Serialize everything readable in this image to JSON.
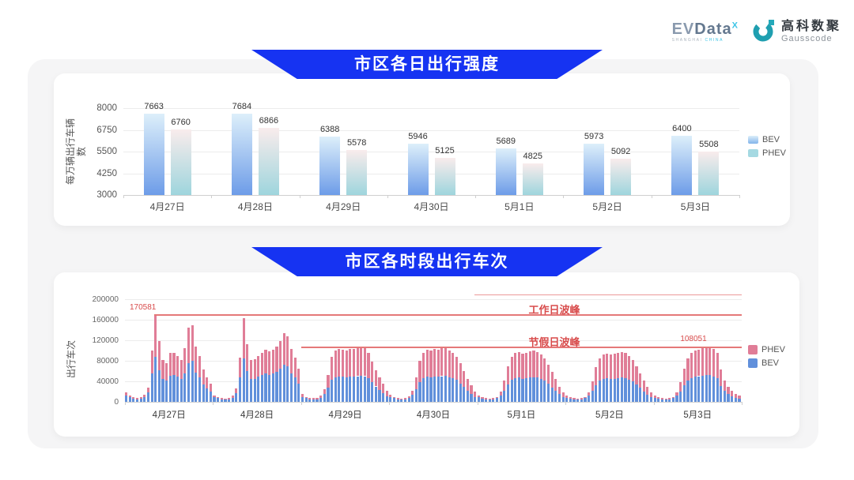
{
  "header": {
    "evdata": {
      "brand_ev": "EV",
      "brand_data": "Data",
      "sup": "X",
      "sub_left": "SHANGHAI",
      "sub_right": "CHINA"
    },
    "gausscode": {
      "cn": "高科数聚",
      "en": "Gausscode"
    }
  },
  "colors": {
    "banner_blue": "#1633f2",
    "bev_bar_top": "#ddeffa",
    "bev_bar_bottom": "#6d9ce8",
    "phev_bar_top": "#f9ecec",
    "phev_bar_bottom": "#9ed5dd",
    "bev_solid": "#6190db",
    "phev_solid": "#e07d97",
    "legend_bev_swatch": "#82b4ea",
    "legend_phev_swatch": "#a5d9e2",
    "annotation_red": "#d84b4b",
    "line_red": "#e57878",
    "panel_bg": "#f5f5f6",
    "grid_line": "#ececec",
    "axis_line": "#cfcfcf"
  },
  "chart_data": [
    {
      "type": "bar",
      "title": "市区各日出行强度",
      "ylabel": "每万辆出行车辆数",
      "categories": [
        "4月27日",
        "4月28日",
        "4月29日",
        "4月30日",
        "5月1日",
        "5月2日",
        "5月3日"
      ],
      "series": [
        {
          "name": "BEV",
          "values": [
            7663,
            7684,
            6388,
            5946,
            5689,
            5973,
            6400
          ]
        },
        {
          "name": "PHEV",
          "values": [
            6760,
            6866,
            5578,
            5125,
            4825,
            5092,
            5508
          ]
        }
      ],
      "ylim": [
        3000,
        8000
      ],
      "yticks": [
        3000,
        4250,
        5500,
        6750,
        8000
      ],
      "legend": [
        "BEV",
        "PHEV"
      ],
      "legend_position": "right",
      "grid": true
    },
    {
      "type": "bar",
      "stacked": true,
      "title": "市区各时段出行车次",
      "ylabel": "出行车次",
      "hours_per_day": 24,
      "ylim": [
        0,
        200000
      ],
      "yticks": [
        0,
        40000,
        80000,
        120000,
        160000,
        200000
      ],
      "legend": [
        "PHEV",
        "BEV"
      ],
      "legend_position": "right",
      "grid": true,
      "annotations": {
        "workday_peak": {
          "label": "工作日波峰",
          "value": 170581,
          "value_label": "170581"
        },
        "holiday_peak": {
          "label": "节假日波峰",
          "value": 108051,
          "value_label": "108051"
        }
      },
      "days": [
        {
          "date": "4月27日",
          "bev": [
            12000,
            9000,
            6000,
            5000,
            6000,
            9000,
            18000,
            55000,
            88000,
            62000,
            44000,
            41000,
            51000,
            52000,
            49000,
            44000,
            55000,
            76000,
            80000,
            57000,
            47000,
            34000,
            26000,
            20000
          ],
          "phev": [
            6000,
            4000,
            3000,
            3000,
            3000,
            5000,
            10000,
            45000,
            82581,
            57000,
            37000,
            35000,
            44000,
            44000,
            41000,
            37000,
            50000,
            69000,
            70000,
            51000,
            42000,
            29000,
            21000,
            15000
          ]
        },
        {
          "date": "4月28日",
          "bev": [
            9000,
            7000,
            5000,
            4000,
            5000,
            8000,
            17000,
            47000,
            85000,
            60000,
            44000,
            45000,
            49000,
            52000,
            55000,
            53000,
            55000,
            58000,
            64000,
            72000,
            69000,
            56000,
            47000,
            36000
          ],
          "phev": [
            4000,
            3000,
            2000,
            2000,
            2000,
            4000,
            9000,
            39000,
            78000,
            52000,
            38000,
            38000,
            41000,
            43000,
            46000,
            45000,
            46000,
            49000,
            54000,
            62000,
            59000,
            47000,
            39000,
            28000
          ]
        },
        {
          "date": "4月29日",
          "bev": [
            10000,
            7000,
            5000,
            5000,
            5000,
            8000,
            15000,
            27000,
            43000,
            48000,
            50000,
            49000,
            48000,
            50000,
            50000,
            50000,
            51000,
            50000,
            46000,
            38000,
            30000,
            23000,
            17000,
            11000
          ],
          "phev": [
            5000,
            3000,
            3000,
            2000,
            3000,
            4000,
            9000,
            25000,
            45000,
            52000,
            53000,
            52000,
            52000,
            53000,
            53000,
            54000,
            56000,
            54000,
            49000,
            40000,
            32000,
            25000,
            18000,
            11000
          ]
        },
        {
          "date": "4月30日",
          "bev": [
            9000,
            7000,
            5000,
            4000,
            5000,
            7000,
            14000,
            25000,
            39000,
            46000,
            49000,
            48000,
            50000,
            49000,
            50000,
            51000,
            48000,
            46000,
            43000,
            36000,
            29000,
            22000,
            16000,
            10000
          ],
          "phev": [
            5000,
            3000,
            2000,
            2000,
            2000,
            4000,
            8000,
            23000,
            41000,
            49000,
            53000,
            52000,
            53000,
            53000,
            54000,
            54000,
            52000,
            50000,
            45000,
            39000,
            31000,
            23000,
            16000,
            10000
          ]
        },
        {
          "date": "5月1日",
          "bev": [
            9000,
            6000,
            5000,
            4000,
            5000,
            7000,
            13000,
            22000,
            34000,
            43000,
            46000,
            47000,
            45000,
            46000,
            47000,
            48000,
            47000,
            44000,
            41000,
            35000,
            28000,
            21000,
            15000,
            9000
          ],
          "phev": [
            4000,
            3000,
            2000,
            2000,
            2000,
            3000,
            7000,
            20000,
            36000,
            45000,
            49000,
            50000,
            49000,
            50000,
            51000,
            52000,
            50000,
            48000,
            44000,
            37000,
            30000,
            23000,
            15000,
            10000
          ]
        },
        {
          "date": "5月2日",
          "bev": [
            8000,
            6000,
            5000,
            4000,
            5000,
            7000,
            12000,
            21000,
            33000,
            41000,
            45000,
            46000,
            44000,
            45000,
            46000,
            47000,
            46000,
            43000,
            40000,
            34000,
            27000,
            20000,
            14000,
            9000
          ],
          "phev": [
            4000,
            3000,
            2000,
            2000,
            2000,
            3000,
            7000,
            19000,
            35000,
            44000,
            47000,
            48000,
            48000,
            49000,
            50000,
            50000,
            49000,
            47000,
            42000,
            36000,
            29000,
            22000,
            15000,
            9000
          ]
        },
        {
          "date": "5月3日",
          "bev": [
            8000,
            6000,
            5000,
            4000,
            5000,
            7000,
            12000,
            20000,
            32000,
            41000,
            46000,
            49000,
            50000,
            51000,
            52000,
            53000,
            50000,
            46000,
            31000,
            21000,
            15000,
            11000,
            8000,
            6000
          ],
          "phev": [
            4000,
            3000,
            2000,
            2000,
            2000,
            3000,
            6000,
            18000,
            33000,
            44000,
            49000,
            51000,
            52000,
            53000,
            54000,
            55051,
            53000,
            49000,
            32000,
            21000,
            15000,
            11000,
            8000,
            6000
          ]
        }
      ]
    }
  ]
}
